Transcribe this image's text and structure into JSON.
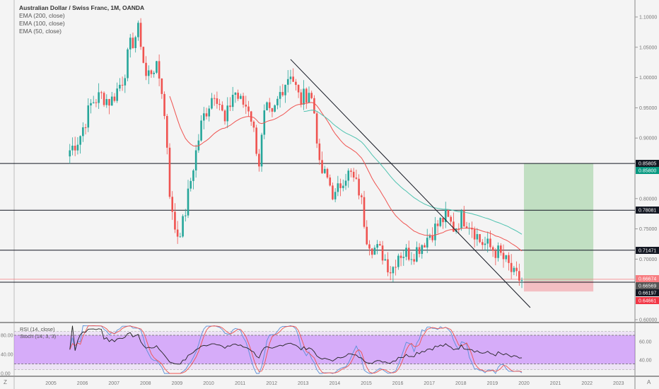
{
  "chart_data": {
    "type": "candlestick",
    "title": "Australian Dollar / Swiss Franc, 1M, OANDA",
    "indicators": [
      "EMA (200, close)",
      "EMA (100, close)",
      "EMA (50, close)"
    ],
    "oscillators": [
      "RSI (14, close)",
      "Stoch (14, 3, 3)"
    ],
    "x_ticks": [
      "2005",
      "2006",
      "2007",
      "2008",
      "2009",
      "2010",
      "2011",
      "2012",
      "2013",
      "2014",
      "2015",
      "2016",
      "2017",
      "2018",
      "2019",
      "2020",
      "2021",
      "2022",
      "2023"
    ],
    "y_ticks": [
      "1.10000",
      "1.05000",
      "1.00000",
      "0.95000",
      "0.90000",
      "0.80000",
      "0.75000",
      "0.70000",
      "0.60000"
    ],
    "y_tick_values": [
      1.1,
      1.05,
      1.0,
      0.95,
      0.9,
      0.8,
      0.75,
      0.7,
      0.6
    ],
    "ylim": [
      0.6,
      1.1
    ],
    "close_anchors": [
      [
        2005.6,
        0.88
      ],
      [
        2005.9,
        0.9
      ],
      [
        2006.3,
        0.96
      ],
      [
        2006.6,
        0.97
      ],
      [
        2006.9,
        0.96
      ],
      [
        2007.3,
        1.0
      ],
      [
        2007.5,
        1.05
      ],
      [
        2007.8,
        1.08
      ],
      [
        2008.0,
        1.0
      ],
      [
        2008.3,
        1.02
      ],
      [
        2008.5,
        0.99
      ],
      [
        2008.7,
        0.88
      ],
      [
        2008.8,
        0.78
      ],
      [
        2009.0,
        0.74
      ],
      [
        2009.2,
        0.76
      ],
      [
        2009.5,
        0.85
      ],
      [
        2009.8,
        0.93
      ],
      [
        2010.2,
        0.98
      ],
      [
        2010.4,
        0.95
      ],
      [
        2010.5,
        0.92
      ],
      [
        2010.8,
        0.98
      ],
      [
        2011.0,
        0.96
      ],
      [
        2011.3,
        0.95
      ],
      [
        2011.6,
        0.86
      ],
      [
        2011.8,
        0.95
      ],
      [
        2012.0,
        0.93
      ],
      [
        2012.3,
        0.98
      ],
      [
        2012.6,
        1.01
      ],
      [
        2012.9,
        0.96
      ],
      [
        2013.2,
        0.98
      ],
      [
        2013.4,
        0.93
      ],
      [
        2013.5,
        0.85
      ],
      [
        2013.8,
        0.83
      ],
      [
        2014.0,
        0.8
      ],
      [
        2014.3,
        0.84
      ],
      [
        2014.5,
        0.84
      ],
      [
        2014.8,
        0.81
      ],
      [
        2015.0,
        0.74
      ],
      [
        2015.2,
        0.72
      ],
      [
        2015.5,
        0.71
      ],
      [
        2015.8,
        0.68
      ],
      [
        2016.0,
        0.71
      ],
      [
        2016.5,
        0.71
      ],
      [
        2017.0,
        0.74
      ],
      [
        2017.5,
        0.77
      ],
      [
        2017.8,
        0.75
      ],
      [
        2018.0,
        0.77
      ],
      [
        2018.3,
        0.76
      ],
      [
        2018.6,
        0.73
      ],
      [
        2018.9,
        0.72
      ],
      [
        2019.2,
        0.71
      ],
      [
        2019.5,
        0.69
      ],
      [
        2019.7,
        0.67
      ],
      [
        2019.95,
        0.665
      ]
    ],
    "levels": [
      {
        "value": 0.85805,
        "label": "0.85805",
        "color": "#131722"
      },
      {
        "value": 0.78081,
        "label": "0.78081",
        "color": "#131722"
      },
      {
        "value": 0.71471,
        "label": "0.71471",
        "color": "#131722"
      },
      {
        "value": 0.66197,
        "label": "0.66197",
        "color": "#131722"
      }
    ],
    "price_labels": [
      {
        "label": "0.85805",
        "color": "#131722",
        "value": 0.85805
      },
      {
        "label": "0.85800",
        "color": "#089981",
        "value": 0.858
      },
      {
        "label": "0.78081",
        "color": "#131722",
        "value": 0.78081
      },
      {
        "label": "0.71471",
        "color": "#131722",
        "value": 0.71471
      },
      {
        "label": "0.66674",
        "color": "#f77c80",
        "value": 0.66674
      },
      {
        "label": "0.66569",
        "color": "#555555",
        "value": 0.66569
      },
      {
        "label": "0.66197",
        "color": "#131722",
        "value": 0.66197
      },
      {
        "label": "0.64661",
        "color": "#f23645",
        "value": 0.64661
      }
    ],
    "position": {
      "entry": 0.66197,
      "target": 0.858,
      "stop": 0.64661,
      "start": 2020.0,
      "end": 2022.2
    },
    "trendline": [
      [
        2012.6,
        1.03
      ],
      [
        2020.2,
        0.62
      ]
    ],
    "rsi_ticks_left": [
      "80.00",
      "40.00",
      "0.00"
    ],
    "rsi_ticks_right": [
      "60.00",
      "40.00"
    ],
    "colors": {
      "up": "#26a69a",
      "down": "#ef5350",
      "ema50": "#ef5350",
      "ema100": "#4fc3b0"
    }
  },
  "corner": {
    "left": "Z",
    "right": "A"
  }
}
